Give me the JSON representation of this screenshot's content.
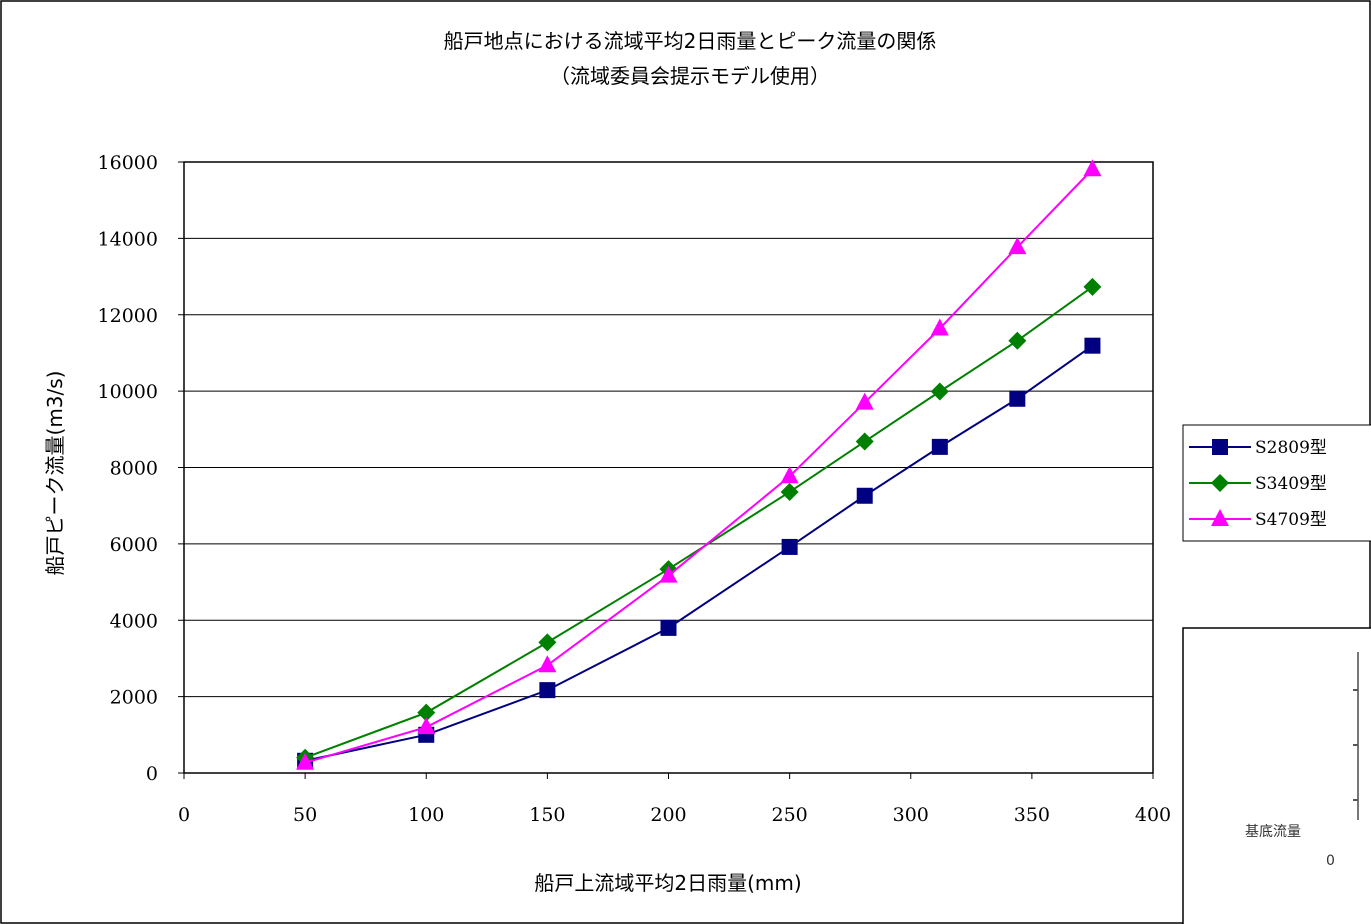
{
  "chart_data": {
    "type": "line",
    "title": "船戸地点における流域平均2日雨量とピーク流量の関係",
    "subtitle": "（流域委員会提示モデル使用）",
    "xlabel": "船戸上流域平均2日雨量(mm)",
    "ylabel": "船戸ピーク流量(m3/s)",
    "xlim": [
      0,
      400
    ],
    "ylim": [
      0,
      16000
    ],
    "xticks": [
      0,
      50,
      100,
      150,
      200,
      250,
      300,
      350,
      400
    ],
    "yticks": [
      0,
      2000,
      4000,
      6000,
      8000,
      10000,
      12000,
      14000,
      16000
    ],
    "grid": "horizontal",
    "legend_position": "right",
    "series": [
      {
        "name": "S2809型",
        "color": "#000080",
        "marker": "square",
        "x": [
          50,
          100,
          150,
          200,
          250,
          281,
          312,
          344,
          375
        ],
        "y": [
          320,
          1000,
          2170,
          3800,
          5920,
          7260,
          8540,
          9800,
          11190
        ]
      },
      {
        "name": "S3409型",
        "color": "#008000",
        "marker": "diamond",
        "x": [
          50,
          100,
          150,
          200,
          250,
          281,
          312,
          344,
          375
        ],
        "y": [
          400,
          1580,
          3420,
          5340,
          7360,
          8680,
          9990,
          11320,
          12730
        ]
      },
      {
        "name": "S4709型",
        "color": "#ff00ff",
        "marker": "triangle",
        "x": [
          50,
          100,
          150,
          200,
          250,
          281,
          312,
          344,
          375
        ],
        "y": [
          270,
          1200,
          2820,
          5170,
          7770,
          9700,
          11640,
          13770,
          15810
        ]
      }
    ]
  },
  "inset": {
    "label": "基底流量",
    "value": "0"
  }
}
